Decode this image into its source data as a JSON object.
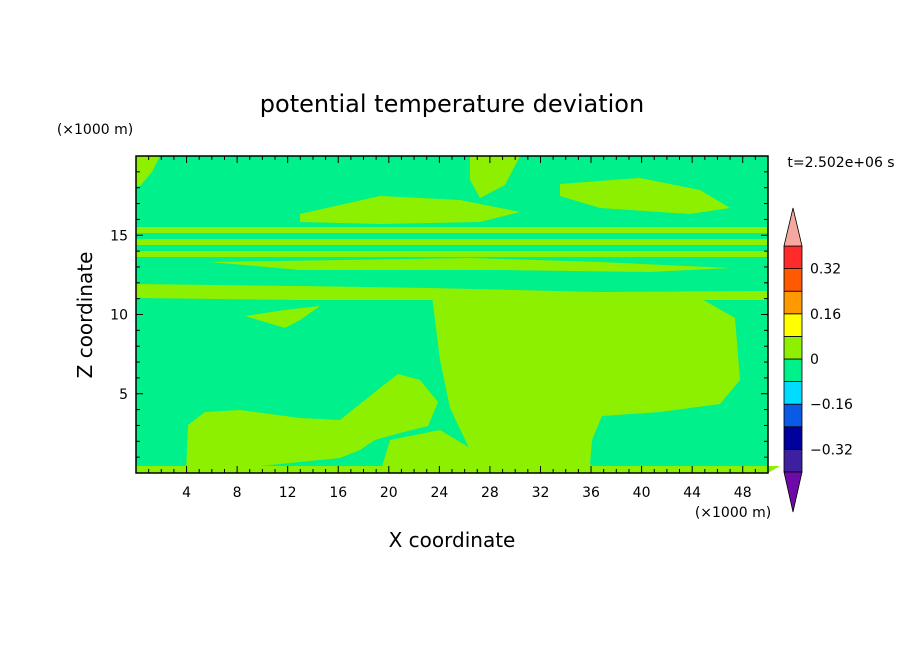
{
  "chart_data": {
    "type": "heatmap",
    "title": "potential temperature deviation",
    "xlabel": "X coordinate",
    "ylabel": "Z coordinate",
    "x_unit": "(×1000 m)",
    "y_unit": "(×1000 m)",
    "time_label": "t=2.502e+06 s",
    "xlim": [
      0,
      50
    ],
    "ylim": [
      0,
      20
    ],
    "x_ticks": [
      4,
      8,
      12,
      16,
      20,
      24,
      28,
      32,
      36,
      40,
      44,
      48
    ],
    "y_ticks": [
      5,
      10,
      15
    ],
    "colorbar": {
      "levels": [
        -0.4,
        -0.32,
        -0.24,
        -0.16,
        -0.08,
        0,
        0.08,
        0.16,
        0.24,
        0.32,
        0.4
      ],
      "colors": [
        "#3e1fa0",
        "#00009c",
        "#0a5ae6",
        "#00dcff",
        "#00f08c",
        "#8cf000",
        "#ffff00",
        "#ff9900",
        "#ff5a00",
        "#ff2a2a"
      ],
      "under_color": "#6e0aa8",
      "over_color": "#f5a8a0",
      "tick_labels": [
        "0.32",
        "0.16",
        "0",
        "−0.16",
        "−0.32"
      ],
      "tick_values": [
        0.32,
        0.16,
        0,
        -0.16,
        -0.32
      ]
    },
    "regions": {
      "background_class": "-0.08 to 0",
      "background_color": "#00f08c",
      "patch_class": "0 to 0.08",
      "patch_color": "#8cf000"
    }
  }
}
